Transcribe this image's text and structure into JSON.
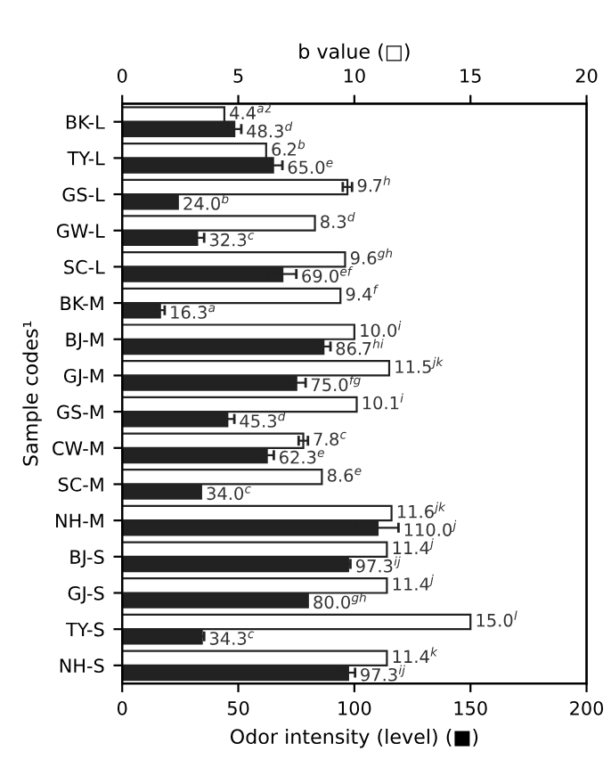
{
  "chart_data": {
    "type": "bar",
    "orientation": "horizontal",
    "xlabel": "Odor intensity (level) (■)",
    "x2label": "b value (□)",
    "ylabel": "Sample codes¹",
    "categories": [
      "BK-L",
      "TY-L",
      "GS-L",
      "GW-L",
      "SC-L",
      "BK-M",
      "BJ-M",
      "GJ-M",
      "GS-M",
      "CW-M",
      "SC-M",
      "NH-M",
      "BJ-S",
      "GJ-S",
      "TY-S",
      "NH-S"
    ],
    "series": [
      {
        "color": "#ffffff",
        "axis": "x2",
        "values": [
          4.4,
          6.2,
          9.7,
          8.3,
          9.6,
          9.4,
          10.0,
          11.5,
          10.1,
          7.8,
          8.6,
          11.6,
          11.4,
          11.4,
          15.0,
          11.4
        ],
        "errors": [
          null,
          null,
          0.2,
          null,
          null,
          null,
          null,
          null,
          null,
          0.2,
          null,
          null,
          null,
          null,
          null,
          null
        ],
        "value_labels": [
          "4.4$^{a2}$",
          "6.2$^{b}$",
          "9.7$^{h}$",
          "8.3$^{d}$",
          "9.6$^{gh}$",
          "9.4$^{f}$",
          "10.0$^{i}$",
          "11.5$^{jk}$",
          "10.1$^{i}$",
          "7.8$^{c}$",
          "8.6$^{e}$",
          "11.6$^{jk}$",
          "11.4$^{j}$",
          "11.4$^{j}$",
          "15.0$^{l}$",
          "11.4$^{k}$"
        ]
      },
      {
        "color": "#222222",
        "values": [
          48.3,
          65.0,
          24.0,
          32.3,
          69.0,
          16.3,
          86.7,
          75.0,
          45.3,
          62.3,
          34.0,
          110.0,
          97.3,
          80.0,
          34.3,
          97.3
        ],
        "errors": [
          3,
          4,
          null,
          3,
          6,
          2,
          3,
          4,
          3,
          3,
          null,
          9,
          1,
          null,
          1,
          3
        ],
        "value_labels": [
          "48.3$^{d}$",
          "65.0$^{e}$",
          "24.0$^{b}$",
          "32.3$^{c}$",
          "69.0$^{ef}$",
          "16.3$^{a}$",
          "86.7$^{hi}$",
          "75.0$^{fg}$",
          "45.3$^{d}$",
          "62.3$^{e}$",
          "34.0$^{c}$",
          "110.0$^{j}$",
          "97.3$^{ij}$",
          "80.0$^{gh}$",
          "34.3$^{c}$",
          "97.3$^{ij}$"
        ]
      }
    ],
    "xlim": [
      0,
      200
    ],
    "xticks": [
      0,
      50,
      100,
      150,
      200
    ],
    "x2lim": [
      0,
      20
    ],
    "x2ticks": [
      0,
      5,
      10,
      15,
      20
    ],
    "grid": false,
    "legend": false
  }
}
